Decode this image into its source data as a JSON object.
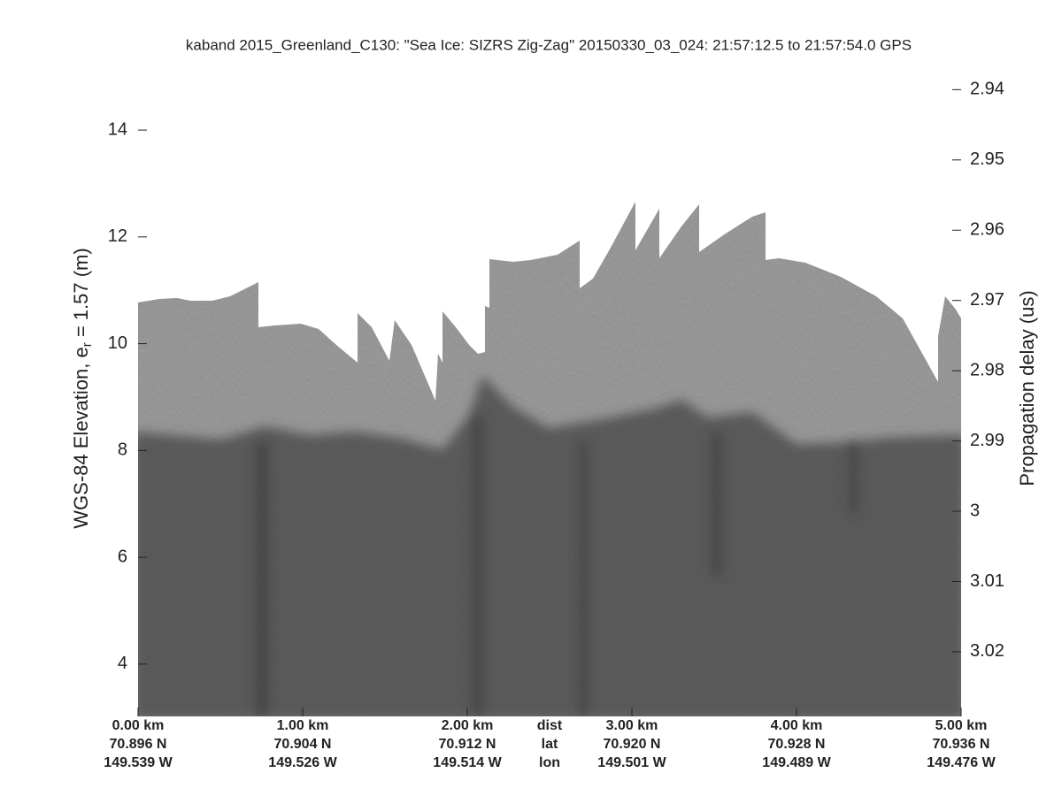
{
  "chart_data": {
    "type": "echogram",
    "title": "kaband 2015_Greenland_C130: \"Sea Ice: SIZRS Zig-Zag\"  20150330_03_024: 21:57:12.5 to 21:57:54.0 GPS",
    "ylabel": {
      "text": "WGS-84 Elevation, e",
      "subscript": "r",
      "suffix": " = 1.57 (m)"
    },
    "y2label": "Propagation delay (us)",
    "xlim": [
      0,
      5
    ],
    "xticks": [
      {
        "value": 0,
        "label": "0.00 km"
      },
      {
        "value": 1,
        "label": "1.00 km"
      },
      {
        "value": 2,
        "label": "2.00 km"
      },
      {
        "value": 3,
        "label": "3.00 km"
      },
      {
        "value": 4,
        "label": "4.00 km"
      },
      {
        "value": 5,
        "label": "5.00 km"
      }
    ],
    "xtick_lat": [
      "70.896 N",
      "70.904 N",
      "70.912 N",
      "70.920 N",
      "70.928 N",
      "70.936 N"
    ],
    "xtick_lon": [
      "149.539 W",
      "149.526 W",
      "149.514 W",
      "149.501 W",
      "149.489 W",
      "149.476 W"
    ],
    "row_labels": [
      "dist",
      "lat",
      "lon"
    ],
    "ylim": [
      3.02,
      15.31
    ],
    "yticks": [
      4,
      6,
      8,
      10,
      12,
      14
    ],
    "y2lim": [
      3.0292,
      2.9358
    ],
    "y2ticks": [
      2.94,
      2.95,
      2.96,
      2.97,
      2.98,
      2.99,
      3,
      3.01,
      3.02
    ]
  }
}
